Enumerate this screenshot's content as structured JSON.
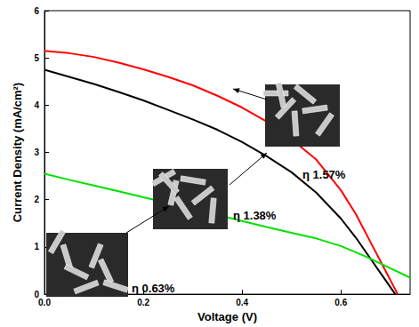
{
  "chart_data": {
    "type": "line",
    "x_label": "Voltage (V)",
    "y_label": "Current Density (mA/cm²)",
    "xlim": [
      0,
      0.74
    ],
    "xticks": [
      {
        "value": 0,
        "label": "0.0"
      },
      0.2,
      0.4,
      0.6
    ],
    "ylim": [
      0,
      6
    ],
    "yticks": [
      0,
      1,
      2,
      3,
      4,
      5,
      6
    ],
    "grid": false,
    "annotations": [
      "η 1.57%",
      "η 1.38%",
      "η 0.63%"
    ],
    "series": [
      {
        "color": "#ff0000",
        "x": [
          0,
          0.05,
          0.1,
          0.15,
          0.2,
          0.25,
          0.3,
          0.35,
          0.4,
          0.45,
          0.5,
          0.55,
          0.6,
          0.63,
          0.66,
          0.69,
          0.715
        ],
        "values": [
          5.15,
          5.1,
          5.02,
          4.9,
          4.76,
          4.6,
          4.42,
          4.2,
          3.95,
          3.65,
          3.28,
          2.85,
          2.2,
          1.7,
          1.1,
          0.5,
          0
        ]
      },
      {
        "color": "#000000",
        "x": [
          0,
          0.05,
          0.1,
          0.15,
          0.2,
          0.25,
          0.3,
          0.35,
          0.4,
          0.45,
          0.5,
          0.55,
          0.6,
          0.63,
          0.66,
          0.69,
          0.71
        ],
        "values": [
          4.75,
          4.6,
          4.45,
          4.28,
          4.1,
          3.9,
          3.7,
          3.48,
          3.22,
          2.92,
          2.58,
          2.15,
          1.6,
          1.2,
          0.75,
          0.3,
          0
        ]
      },
      {
        "color": "#00e000",
        "x": [
          0,
          0.05,
          0.1,
          0.15,
          0.2,
          0.25,
          0.3,
          0.35,
          0.4,
          0.45,
          0.5,
          0.55,
          0.6,
          0.65,
          0.7,
          0.74
        ],
        "values": [
          2.55,
          2.42,
          2.3,
          2.18,
          2.05,
          1.93,
          1.8,
          1.68,
          1.55,
          1.42,
          1.3,
          1.18,
          1.02,
          0.8,
          0.55,
          0.35
        ]
      }
    ]
  }
}
